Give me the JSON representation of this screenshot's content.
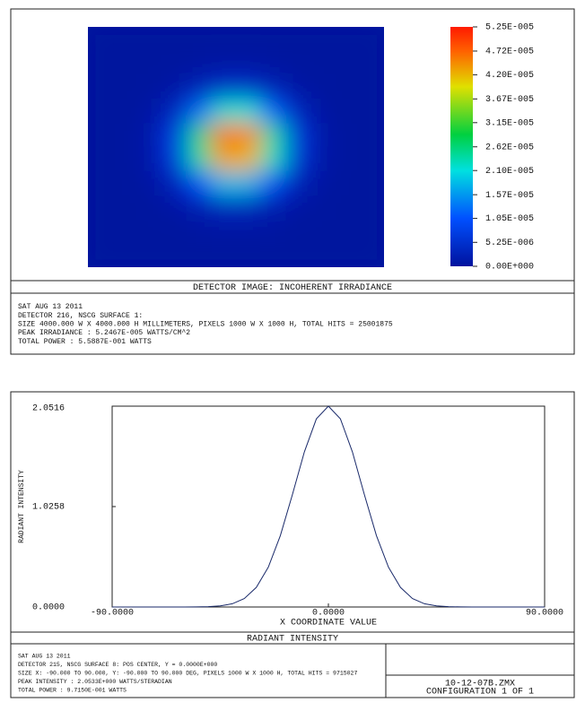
{
  "chart_data": [
    {
      "type": "heatmap",
      "title": "DETECTOR IMAGE: INCOHERENT IRRADIANCE",
      "zlim": [
        0,
        5.25e-05
      ],
      "zticks": [
        {
          "value": 0,
          "label": "0.00E+000"
        },
        {
          "value": 5.25e-06,
          "label": "5.25E-006"
        },
        {
          "value": 1.05e-05,
          "label": "1.05E-005"
        },
        {
          "value": 1.57e-05,
          "label": "1.57E-005"
        },
        {
          "value": 2.1e-05,
          "label": "2.10E-005"
        },
        {
          "value": 2.62e-05,
          "label": "2.62E-005"
        },
        {
          "value": 3.15e-05,
          "label": "3.15E-005"
        },
        {
          "value": 3.67e-05,
          "label": "3.67E-005"
        },
        {
          "value": 4.2e-05,
          "label": "4.20E-005"
        },
        {
          "value": 4.72e-05,
          "label": "4.72E-005"
        },
        {
          "value": 5.25e-05,
          "label": "5.25E-005"
        }
      ],
      "values": [
        [
          0,
          0,
          0,
          0,
          0,
          0,
          0,
          0,
          0,
          0,
          0,
          0
        ],
        [
          0,
          0,
          0,
          1e-07,
          2e-07,
          4e-07,
          4e-07,
          2e-07,
          1e-07,
          0,
          0,
          0
        ],
        [
          0,
          0,
          1e-07,
          7e-07,
          2.6e-06,
          4.6e-06,
          4.5e-06,
          2.4e-06,
          7e-07,
          1e-07,
          0,
          0
        ],
        [
          0,
          0,
          6e-07,
          3.5e-06,
          1.23e-05,
          2.2e-05,
          2.15e-05,
          1.16e-05,
          3.2e-06,
          5e-07,
          0,
          0
        ],
        [
          0,
          1e-07,
          1.2e-06,
          7.4e-06,
          2.57e-05,
          4.59e-05,
          4.49e-05,
          2.42e-05,
          6.7e-06,
          1e-06,
          1e-07,
          0
        ],
        [
          0,
          1e-07,
          1.2e-06,
          6.9e-06,
          2.4e-05,
          4.3e-05,
          4.2e-05,
          2.26e-05,
          6.2e-06,
          1e-06,
          1e-07,
          0
        ],
        [
          0,
          0,
          5e-07,
          3e-06,
          1.02e-05,
          1.83e-05,
          1.79e-05,
          9.6e-06,
          2.7e-06,
          4e-07,
          0,
          0
        ],
        [
          0,
          0,
          1e-07,
          6e-07,
          1.9e-06,
          3.4e-06,
          3.3e-06,
          1.8e-06,
          5e-07,
          1e-07,
          0,
          0
        ],
        [
          0,
          0,
          0,
          0,
          2e-07,
          3e-07,
          3e-07,
          2e-07,
          0,
          0,
          0,
          0
        ],
        [
          0,
          0,
          0,
          0,
          0,
          0,
          0,
          0,
          0,
          0,
          0,
          0
        ]
      ],
      "footer": [
        "SAT AUG 13 2011",
        "DETECTOR 216, NSCG SURFACE 1:",
        "SIZE 4000.000 W X 4000.000 H MILLIMETERS, PIXELS 1000 W X 1000 H, TOTAL HITS = 25001875",
        "PEAK IRRADIANCE : 5.2467E-005 WATTS/CM^2",
        "TOTAL POWER     : 5.5887E-001 WATTS"
      ]
    },
    {
      "type": "line",
      "title": "RADIANT INTENSITY",
      "xlabel": "X COORDINATE VALUE",
      "ylabel": "RADIANT INTENSITY",
      "x": [
        -90,
        -85,
        -80,
        -75,
        -70,
        -65,
        -60,
        -55,
        -50,
        -45,
        -40,
        -35,
        -30,
        -25,
        -20,
        -15,
        -10,
        -5,
        0,
        5,
        10,
        15,
        20,
        25,
        30,
        35,
        40,
        45,
        50,
        55,
        60,
        65,
        70,
        75,
        80,
        85,
        90
      ],
      "values": [
        0,
        0,
        0,
        0,
        0,
        0,
        0,
        0.001,
        0.003,
        0.011,
        0.033,
        0.086,
        0.2,
        0.407,
        0.729,
        1.146,
        1.584,
        1.922,
        2.0516,
        1.922,
        1.584,
        1.146,
        0.729,
        0.407,
        0.2,
        0.086,
        0.033,
        0.011,
        0.003,
        0.001,
        0,
        0,
        0,
        0,
        0,
        0,
        0
      ],
      "color": "#1a2a6a",
      "xlim": [
        -90,
        90
      ],
      "ylim": [
        0,
        2.0516
      ],
      "xticks": [
        {
          "value": -90,
          "label": "-90.0000"
        },
        {
          "value": 0,
          "label": "0.0000"
        },
        {
          "value": 90,
          "label": "90.0000"
        }
      ],
      "yticks": [
        {
          "value": 0,
          "label": "0.0000"
        },
        1.0258,
        2.0516
      ],
      "footer": [
        "SAT AUG 13 2011",
        "DETECTOR 215, NSCG SURFACE 8: POS CENTER, Y = 0.0000E+000",
        "SIZE X: -90.000 TO 90.000, Y: -90.000 TO 90.000 DEG, PIXELS 1000 W X 1000 H, TOTAL HITS = 9715027",
        "PEAK INTENSITY  : 2.0533E+000 WATTS/STERADIAN",
        "TOTAL POWER     : 9.7150E-001 WATTS"
      ],
      "file": "10-12-07B.ZMX",
      "configuration": "CONFIGURATION 1 OF 1"
    }
  ]
}
